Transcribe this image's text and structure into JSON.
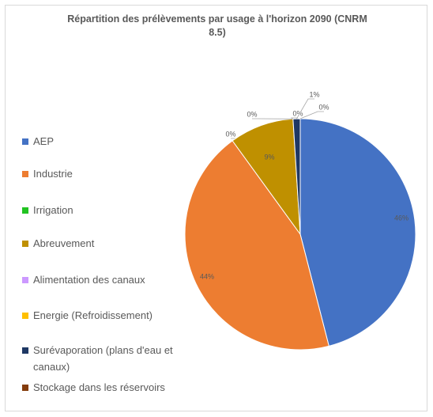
{
  "chart_data": {
    "type": "pie",
    "title": "Répartition des prélèvements par usage à l'horizon 2090 (CNRM 8.5)",
    "categories": [
      "AEP",
      "Industrie",
      "Irrigation",
      "Abreuvement",
      "Alimentation des canaux",
      "Energie (Refroidissement)",
      "Surévaporation (plans d'eau et canaux)",
      "Stockage dans les réservoirs"
    ],
    "values": [
      46,
      44,
      0,
      9,
      0,
      0,
      1,
      0
    ],
    "value_labels": [
      "46%",
      "44%",
      "0%",
      "9%",
      "0%",
      "0%",
      "1%",
      "0%"
    ],
    "colors": [
      "#4472c4",
      "#ed7d31",
      "#22c322",
      "#bf9000",
      "#cc99ff",
      "#ffc000",
      "#1f3864",
      "#843c0c"
    ],
    "legend": "left"
  }
}
